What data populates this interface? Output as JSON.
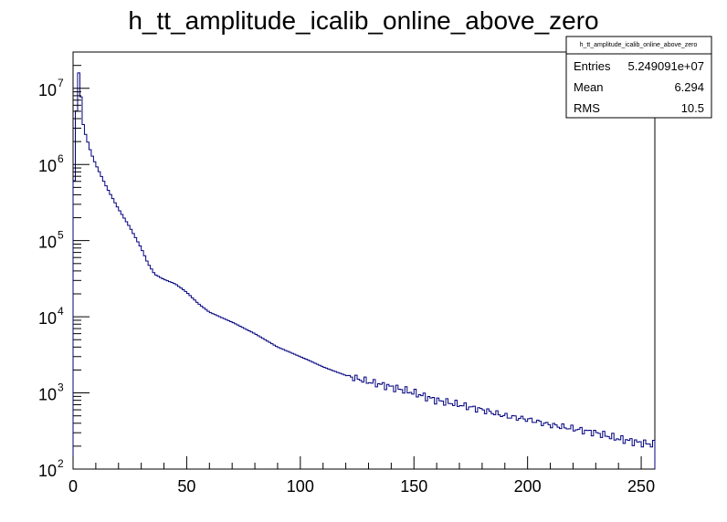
{
  "chart_data": {
    "type": "area",
    "title": "h_tt_amplitude_icalib_online_above_zero",
    "xlabel": "",
    "ylabel": "",
    "xlim": [
      0,
      256
    ],
    "ylim": [
      100,
      30000000
    ],
    "yscale": "log",
    "bin_width": 1,
    "x_ticks": [
      0,
      50,
      100,
      150,
      200,
      250
    ],
    "y_ticks": [
      {
        "base": "10",
        "exp": "2",
        "value": 100
      },
      {
        "base": "10",
        "exp": "3",
        "value": 1000
      },
      {
        "base": "10",
        "exp": "4",
        "value": 10000
      },
      {
        "base": "10",
        "exp": "5",
        "value": 100000
      },
      {
        "base": "10",
        "exp": "6",
        "value": 1000000
      },
      {
        "base": "10",
        "exp": "7",
        "value": 10000000
      }
    ],
    "grid": false,
    "line_color": "#00007f",
    "legend_position": "top-right",
    "stats": {
      "name": "h_tt_amplitude_icalib_online_above_zero",
      "rows": [
        {
          "label": "Entries",
          "value": "5.249091e+07"
        },
        {
          "label": "Mean",
          "value": "6.294"
        },
        {
          "label": "RMS",
          "value": "10.5"
        }
      ]
    },
    "curve_points": [
      [
        0,
        250000
      ],
      [
        1,
        1500000
      ],
      [
        2,
        17000000
      ],
      [
        3,
        15000000
      ],
      [
        4,
        4000000
      ],
      [
        5,
        2800000
      ],
      [
        6,
        2200000
      ],
      [
        8,
        1400000
      ],
      [
        10,
        1000000
      ],
      [
        12,
        750000
      ],
      [
        14,
        560000
      ],
      [
        16,
        430000
      ],
      [
        20,
        260000
      ],
      [
        25,
        150000
      ],
      [
        30,
        80000
      ],
      [
        33,
        50000
      ],
      [
        36,
        36000
      ],
      [
        40,
        31000
      ],
      [
        45,
        27000
      ],
      [
        50,
        21000
      ],
      [
        55,
        15000
      ],
      [
        60,
        11500
      ],
      [
        70,
        8500
      ],
      [
        80,
        6000
      ],
      [
        90,
        4000
      ],
      [
        100,
        3000
      ],
      [
        110,
        2200
      ],
      [
        120,
        1700
      ],
      [
        130,
        1400
      ],
      [
        140,
        1200
      ],
      [
        150,
        1000
      ],
      [
        160,
        800
      ],
      [
        170,
        700
      ],
      [
        180,
        600
      ],
      [
        190,
        500
      ],
      [
        200,
        450
      ],
      [
        210,
        380
      ],
      [
        220,
        340
      ],
      [
        230,
        300
      ],
      [
        240,
        250
      ],
      [
        250,
        220
      ],
      [
        256,
        210
      ]
    ]
  }
}
